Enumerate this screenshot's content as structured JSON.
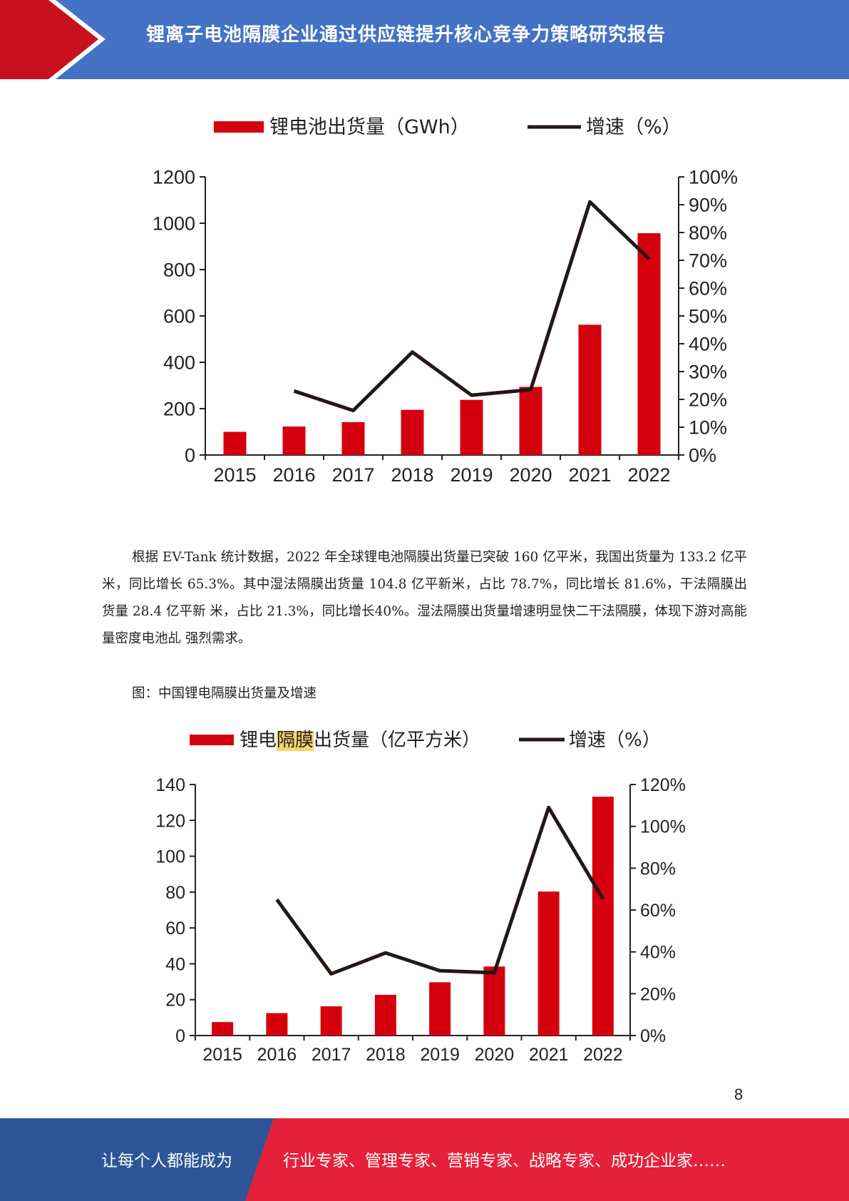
{
  "header": {
    "title": "锂离子电池隔膜企业通过供应链提升核心竞争力策略研究报告",
    "colors": {
      "red": "#c8101e",
      "blue": "#4472c4"
    }
  },
  "charts": [
    {
      "legend": {
        "bar_label": "锂电池出货量（GWh）",
        "line_label": "增速（%）"
      }
    },
    {
      "legend": {
        "bar_label_prefix": "锂电",
        "bar_label_highlight": "隔膜",
        "bar_label_suffix": "出货量（亿平方米）",
        "line_label": "增速（%）"
      }
    }
  ],
  "chart_data": [
    {
      "type": "bar",
      "categories": [
        "2015",
        "2016",
        "2017",
        "2018",
        "2019",
        "2020",
        "2021",
        "2022"
      ],
      "series": [
        {
          "name": "锂电池出货量（GWh）",
          "type": "bar",
          "axis": "left",
          "values": [
            100,
            123,
            142,
            195,
            238,
            294,
            562,
            957
          ],
          "color": "#d4000e"
        },
        {
          "name": "增速（%）",
          "type": "line",
          "axis": "right",
          "values": [
            null,
            23,
            16,
            37,
            21.5,
            23.5,
            91,
            70.5
          ],
          "color": "#231815"
        }
      ],
      "ylim_left": [
        0,
        1200
      ],
      "yticks_left": [
        "0",
        "200",
        "400",
        "600",
        "800",
        "1000",
        "1200"
      ],
      "ylim_right": [
        0,
        100
      ],
      "yticks_right": [
        "0%",
        "10%",
        "20%",
        "30%",
        "40%",
        "50%",
        "60%",
        "70%",
        "80%",
        "90%",
        "100%"
      ],
      "legend_position": "top"
    },
    {
      "type": "bar",
      "categories": [
        "2015",
        "2016",
        "2017",
        "2018",
        "2019",
        "2020",
        "2021",
        "2022"
      ],
      "series": [
        {
          "name": "锂电隔膜出货量（亿平方米）",
          "type": "bar",
          "axis": "left",
          "values": [
            7.5,
            12.5,
            16.3,
            22.7,
            29.7,
            38.5,
            80.3,
            133.2
          ],
          "color": "#d4000e"
        },
        {
          "name": "增速（%）",
          "type": "line",
          "axis": "right",
          "values": [
            null,
            65,
            29.5,
            39.5,
            31,
            30,
            109,
            65.3
          ],
          "color": "#231815"
        }
      ],
      "ylim_left": [
        0,
        140
      ],
      "yticks_left": [
        "0",
        "20",
        "40",
        "60",
        "80",
        "100",
        "120",
        "140"
      ],
      "ylim_right": [
        0,
        120
      ],
      "yticks_right": [
        "0%",
        "20%",
        "40%",
        "60%",
        "80%",
        "100%",
        "120%"
      ],
      "legend_position": "top"
    }
  ],
  "body": {
    "paragraph": "根据 EV-Tank 统计数据，2022 年全球锂电池隔膜出货量已突破 160 亿平米，我国出货量为 133.2 亿平米，同比增长 65.3%。其中湿法隔膜出货量 104.8 亿平新米，占比 78.7%，同比增长 81.6%，干法隔膜出货量 28.4 亿平新 米，占比 21.3%，同比增长40%。湿法隔膜出货量增速明显快二干法隔膜，体现下游对高能量密度电池乩 强烈需求。",
    "caption": "图：中国锂电隔膜出货量及增速"
  },
  "page_number": "8",
  "footer": {
    "left_text": "让每个人都能成为",
    "right_text": "行业专家、管理专家、营销专家、战略专家、成功企业家……",
    "colors": {
      "blue": "#2e5597",
      "red": "#e5213a"
    }
  }
}
